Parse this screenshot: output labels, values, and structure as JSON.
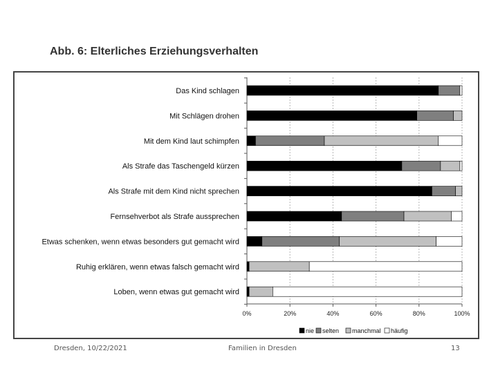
{
  "slide": {
    "title": "Abb. 6: Elterliches Erziehungsverhalten"
  },
  "footer": {
    "date": "Dresden, 10/22/2021",
    "center": "Familien in Dresden",
    "page": "13"
  },
  "chart_data": {
    "type": "bar",
    "orientation": "horizontal",
    "stacked": true,
    "title": "Abb. 6: Elterliches Erziehungsverhalten",
    "categories": [
      "Das Kind schlagen",
      "Mit Schlägen drohen",
      "Mit dem Kind laut schimpfen",
      "Als Strafe das Taschengeld kürzen",
      "Als Strafe mit dem Kind nicht sprechen",
      "Fernsehverbot als Strafe aussprechen",
      "Etwas schenken, wenn etwas besonders gut gemacht wird",
      "Ruhig erklären, wenn etwas falsch gemacht wird",
      "Loben, wenn etwas gut gemacht wird"
    ],
    "series": [
      {
        "name": "nie",
        "color": "#000000",
        "values": [
          89,
          79,
          4,
          72,
          86,
          44,
          7,
          1,
          1
        ]
      },
      {
        "name": "selten",
        "color": "#7f7f7f",
        "values": [
          10,
          17,
          32,
          18,
          11,
          29,
          36,
          0,
          0
        ]
      },
      {
        "name": "manchmal",
        "color": "#c0c0c0",
        "values": [
          0,
          4,
          53,
          9,
          3,
          22,
          45,
          28,
          11
        ]
      },
      {
        "name": "häufig",
        "color": "#ffffff",
        "values": [
          1,
          0,
          11,
          1,
          0,
          5,
          12,
          71,
          88
        ]
      }
    ],
    "xticks": [
      "0%",
      "20%",
      "40%",
      "60%",
      "80%",
      "100%"
    ],
    "xlim": [
      0,
      100
    ],
    "xlabel": "",
    "ylabel": "",
    "grid": true,
    "legend_position": "bottom-right"
  }
}
